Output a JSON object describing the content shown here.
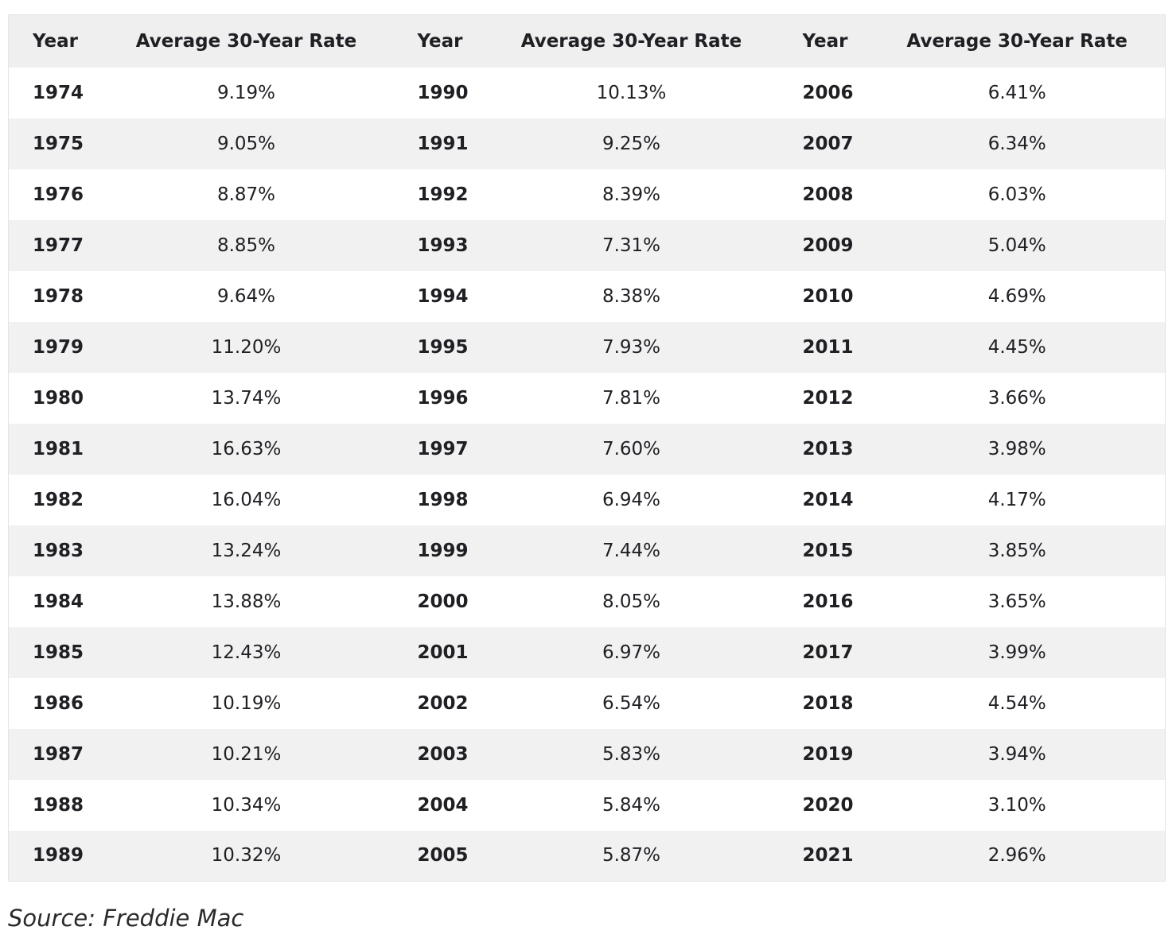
{
  "table": {
    "header": [
      "Year",
      "Average 30-Year Rate",
      "Year",
      "Average 30-Year Rate",
      "Year",
      "Average 30-Year Rate"
    ],
    "rows": [
      [
        "1974",
        "9.19%",
        "1990",
        "10.13%",
        "2006",
        "6.41%"
      ],
      [
        "1975",
        "9.05%",
        "1991",
        "9.25%",
        "2007",
        "6.34%"
      ],
      [
        "1976",
        "8.87%",
        "1992",
        "8.39%",
        "2008",
        "6.03%"
      ],
      [
        "1977",
        "8.85%",
        "1993",
        "7.31%",
        "2009",
        "5.04%"
      ],
      [
        "1978",
        "9.64%",
        "1994",
        "8.38%",
        "2010",
        "4.69%"
      ],
      [
        "1979",
        "11.20%",
        "1995",
        "7.93%",
        "2011",
        "4.45%"
      ],
      [
        "1980",
        "13.74%",
        "1996",
        "7.81%",
        "2012",
        "3.66%"
      ],
      [
        "1981",
        "16.63%",
        "1997",
        "7.60%",
        "2013",
        "3.98%"
      ],
      [
        "1982",
        "16.04%",
        "1998",
        "6.94%",
        "2014",
        "4.17%"
      ],
      [
        "1983",
        "13.24%",
        "1999",
        "7.44%",
        "2015",
        "3.85%"
      ],
      [
        "1984",
        "13.88%",
        "2000",
        "8.05%",
        "2016",
        "3.65%"
      ],
      [
        "1985",
        "12.43%",
        "2001",
        "6.97%",
        "2017",
        "3.99%"
      ],
      [
        "1986",
        "10.19%",
        "2002",
        "6.54%",
        "2018",
        "4.54%"
      ],
      [
        "1987",
        "10.21%",
        "2003",
        "5.83%",
        "2019",
        "3.94%"
      ],
      [
        "1988",
        "10.34%",
        "2004",
        "5.84%",
        "2020",
        "3.10%"
      ],
      [
        "1989",
        "10.32%",
        "2005",
        "5.87%",
        "2021",
        "2.96%"
      ]
    ]
  },
  "source": "Source: Freddie Mac"
}
